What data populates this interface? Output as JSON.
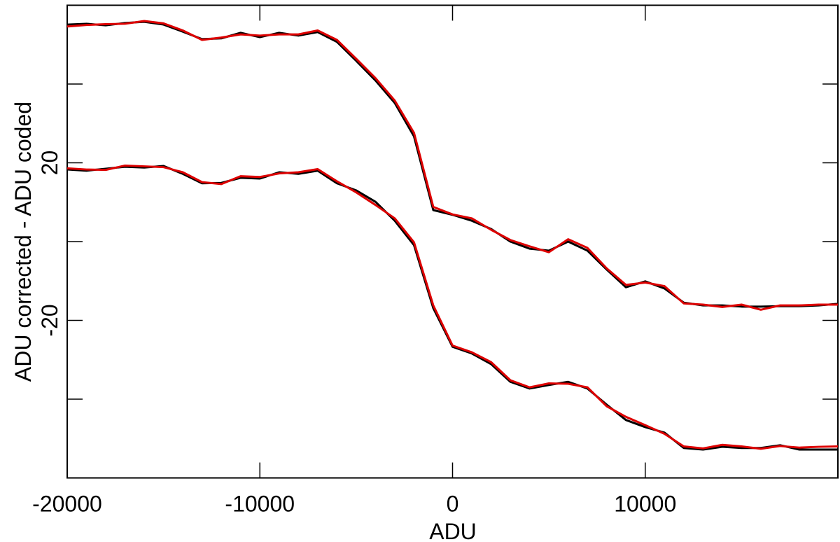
{
  "chart_data": {
    "type": "line",
    "x_label": "ADU",
    "y_label": "ADU corrected - ADU coded",
    "xlim": [
      -20000,
      20000
    ],
    "ylim": [
      -60,
      60
    ],
    "xticks": [
      -20000,
      -10000,
      0,
      10000
    ],
    "yticks": [
      -20,
      20
    ],
    "y_minor_ticks": [
      -40,
      0,
      40
    ],
    "x": [
      -20000,
      -19000,
      -18000,
      -17000,
      -16000,
      -15000,
      -14000,
      -13000,
      -12000,
      -11000,
      -10000,
      -9000,
      -8000,
      -7000,
      -6000,
      -5000,
      -4000,
      -3000,
      -2000,
      -1000,
      0,
      1000,
      2000,
      3000,
      4000,
      5000,
      6000,
      7000,
      8000,
      9000,
      10000,
      11000,
      12000,
      13000,
      14000,
      15000,
      16000,
      17000,
      18000,
      19000,
      20000
    ],
    "series": [
      {
        "color": "#000000",
        "values": [
          55.1,
          55.3,
          54.9,
          55.5,
          55.8,
          55.1,
          53.3,
          51.4,
          51.6,
          53.0,
          51.9,
          53.0,
          52.3,
          53.2,
          50.7,
          45.9,
          40.9,
          35.2,
          26.7,
          8.0,
          6.8,
          5.3,
          3.2,
          0.0,
          -1.8,
          -2.3,
          0.0,
          -2.3,
          -7.1,
          -11.6,
          -10.1,
          -11.9,
          -15.5,
          -16.2,
          -16.2,
          -16.5,
          -16.5,
          -16.4,
          -16.4,
          -16.2,
          -15.8
        ]
      },
      {
        "color": "#dd0000",
        "values": [
          54.6,
          55.0,
          55.2,
          55.3,
          56.0,
          55.4,
          53.6,
          51.2,
          51.8,
          52.6,
          52.3,
          52.6,
          52.6,
          53.6,
          51.2,
          46.4,
          41.5,
          35.8,
          27.6,
          8.8,
          6.9,
          5.9,
          3.0,
          0.4,
          -1.2,
          -2.7,
          0.6,
          -1.6,
          -6.8,
          -11.0,
          -10.4,
          -11.3,
          -15.7,
          -16.0,
          -16.6,
          -16.0,
          -17.3,
          -16.2,
          -16.2,
          -16.0,
          -16.0
        ]
      },
      {
        "color": "#000000",
        "values": [
          18.3,
          18.0,
          18.5,
          19.0,
          18.8,
          19.2,
          17.2,
          14.8,
          14.9,
          16.2,
          16.0,
          17.6,
          17.2,
          18.0,
          14.8,
          13.0,
          10.1,
          5.3,
          -0.9,
          -16.9,
          -26.7,
          -28.4,
          -31.1,
          -35.6,
          -37.3,
          -36.4,
          -35.6,
          -37.3,
          -41.4,
          -45.3,
          -47.1,
          -48.5,
          -52.4,
          -52.8,
          -52.1,
          -52.4,
          -52.4,
          -51.7,
          -52.8,
          -52.8,
          -52.8
        ]
      },
      {
        "color": "#dd0000",
        "values": [
          18.6,
          18.3,
          18.2,
          19.3,
          19.1,
          18.9,
          17.6,
          15.1,
          14.6,
          16.6,
          16.4,
          17.3,
          17.6,
          18.4,
          15.3,
          12.5,
          9.3,
          5.9,
          -0.2,
          -16.2,
          -26.4,
          -28.1,
          -30.6,
          -35.2,
          -37.0,
          -36.0,
          -36.1,
          -37.0,
          -41.8,
          -44.5,
          -46.6,
          -48.8,
          -52.0,
          -52.5,
          -51.6,
          -52.0,
          -52.6,
          -51.9,
          -52.3,
          -52.1,
          -52.0
        ]
      }
    ]
  }
}
